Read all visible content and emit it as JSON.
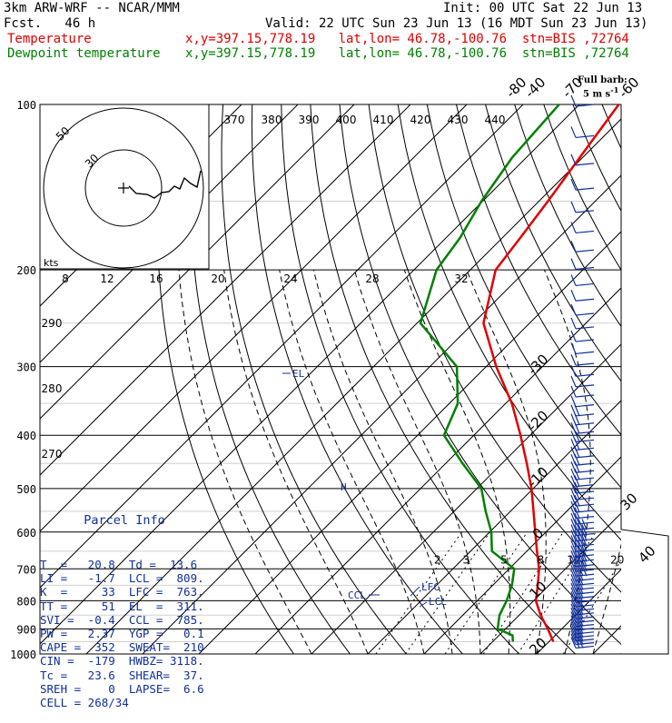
{
  "header": {
    "model": "3km ARW-WRF -- NCAR/MMM",
    "init": "Init: 00 UTC Sat 22 Jun 13",
    "fcst": "Fcst.   46 h",
    "valid": "Valid: 22 UTC Sun 23 Jun 13 (16 MDT Sun 23 Jun 13)",
    "temp_label": "Temperature",
    "temp_info": "x,y=397.15,778.19   lat,lon= 46.78,-100.76  stn=BIS ,72764",
    "dew_label": "Dewpoint temperature",
    "dew_info": "x,y=397.15,778.19   lat,lon= 46.78,-100.76  stn=BIS ,72764"
  },
  "colors": {
    "temperature": "#e00000",
    "dewpoint": "#008000",
    "barbs": "#102f9a",
    "axes": "#000000"
  },
  "barb_legend": {
    "line1": "Full barb:",
    "line2": "5 m s",
    "exp": "-1"
  },
  "parcel_info": {
    "title": "Parcel Info",
    "rows": [
      "T  =   20.8  Td =  13.6",
      "LI =   -1.7  LCL =  809.",
      "K  =     33  LFC =  763.",
      "TT =     51  EL  =  311.",
      "SVI =  -0.4  CCL =  785.",
      "PW =   2.37  YGP =   0.1",
      "CAPE =  352  SWEAT=  210",
      "CIN =  -179  HWBZ= 3118.",
      "Tc =   23.6  SHEAR=  37.",
      "SREH =    0  LAPSE=  6.6",
      "CELL = 268/34"
    ]
  },
  "chart_data": {
    "type": "line",
    "subtype": "skew-T log-P",
    "pressure_levels": [
      1000,
      900,
      800,
      700,
      600,
      500,
      400,
      300,
      200,
      100
    ],
    "isotherm_labels": [
      "-80",
      "-70",
      "-60",
      "-50",
      "-40",
      "-30",
      "-20",
      "-10",
      "0",
      "10",
      "20",
      "30",
      "40"
    ],
    "theta_labels_top": [
      "370",
      "380",
      "390",
      "400",
      "410",
      "420",
      "430",
      "440"
    ],
    "theta_labels_left": [
      "290",
      "280",
      "270"
    ],
    "mixing_ratio_labels": [
      "2",
      "3",
      "5",
      "8",
      "12",
      "20"
    ],
    "hodo_speed_labels": [
      "8",
      "12",
      "16",
      "20",
      "24",
      "28",
      "32"
    ],
    "hodo_ring_labels": [
      "50",
      "30"
    ],
    "hodo_units": "kts",
    "markers": {
      "el": "EL",
      "lfc": "LFC",
      "lcl": "LCL",
      "ccl": "CCL",
      "hwbz": "H"
    },
    "temperature_C": [
      [
        950,
        20.8
      ],
      [
        900,
        17.5
      ],
      [
        850,
        13.8
      ],
      [
        800,
        10.4
      ],
      [
        750,
        8.0
      ],
      [
        700,
        5.3
      ],
      [
        650,
        1.8
      ],
      [
        600,
        -1.9
      ],
      [
        550,
        -5.9
      ],
      [
        500,
        -10.3
      ],
      [
        450,
        -15.6
      ],
      [
        400,
        -21.7
      ],
      [
        350,
        -28.9
      ],
      [
        300,
        -38.2
      ],
      [
        250,
        -48.2
      ],
      [
        200,
        -55.5
      ],
      [
        175,
        -56.8
      ],
      [
        150,
        -58.4
      ],
      [
        125,
        -60.5
      ],
      [
        100,
        -63.0
      ]
    ],
    "dewpoint_C": [
      [
        950,
        13.6
      ],
      [
        925,
        12.4
      ],
      [
        900,
        8.6
      ],
      [
        850,
        6.5
      ],
      [
        800,
        5.2
      ],
      [
        750,
        3.4
      ],
      [
        700,
        0.9
      ],
      [
        650,
        -6.2
      ],
      [
        600,
        -9.7
      ],
      [
        550,
        -14.4
      ],
      [
        500,
        -19.2
      ],
      [
        450,
        -27.0
      ],
      [
        400,
        -35.3
      ],
      [
        350,
        -38.5
      ],
      [
        300,
        -45.2
      ],
      [
        250,
        -59.4
      ],
      [
        200,
        -66.0
      ],
      [
        175,
        -67.5
      ],
      [
        150,
        -70.2
      ],
      [
        125,
        -72.5
      ],
      [
        100,
        -73.6
      ]
    ]
  }
}
